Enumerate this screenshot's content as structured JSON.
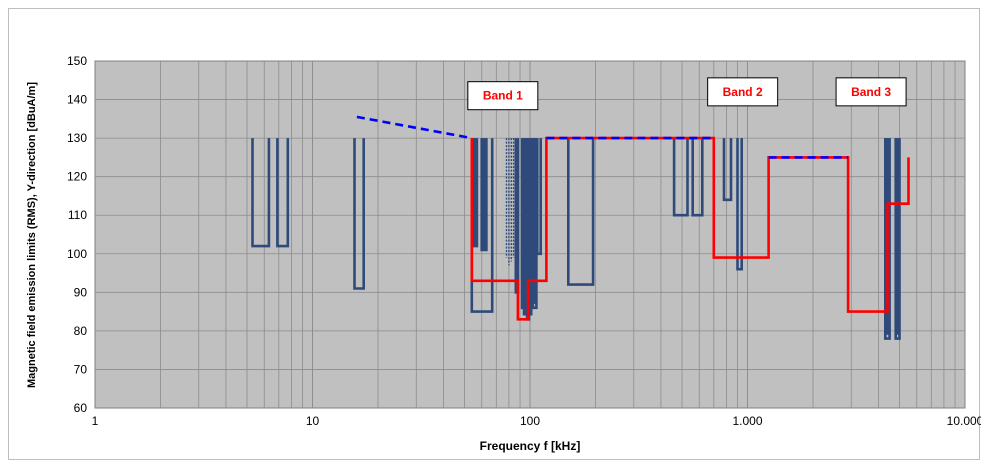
{
  "chart_data": {
    "type": "line",
    "title": "",
    "xlabel": "Frequency f [kHz]",
    "ylabel": "Magnetic field emission limits (RMS), Y-direction [dBuA/m]",
    "xscale": "log",
    "xlim": [
      1,
      10000
    ],
    "ylim": [
      60,
      150
    ],
    "x_ticks": [
      {
        "value": 1,
        "label": "1"
      },
      {
        "value": 10,
        "label": "10"
      },
      {
        "value": 100,
        "label": "100"
      },
      {
        "value": 1000,
        "label": "1.000"
      },
      {
        "value": 10000,
        "label": "10.000"
      }
    ],
    "y_ticks": [
      60,
      70,
      80,
      90,
      100,
      110,
      120,
      130,
      140,
      150
    ],
    "grid": true,
    "plot_background": "#c0c0c0",
    "colors": {
      "navy": "#2e4a7a",
      "red": "#ff0000",
      "blue_dash": "#0000ff",
      "grid": "#8c8c8c"
    },
    "annotations": [
      {
        "text": "Band 1",
        "x": 75,
        "y": 141
      },
      {
        "text": "Band 2",
        "x": 950,
        "y": 142
      },
      {
        "text": "Band 3",
        "x": 3700,
        "y": 142
      }
    ],
    "series": [
      {
        "style": "navy",
        "segments": [
          [
            [
              5.3,
              130
            ],
            [
              5.3,
              102
            ],
            [
              6.3,
              102
            ],
            [
              6.3,
              130
            ]
          ],
          [
            [
              6.9,
              130
            ],
            [
              6.9,
              102
            ],
            [
              7.7,
              102
            ],
            [
              7.7,
              130
            ]
          ],
          [
            [
              15.6,
              130
            ],
            [
              15.6,
              91
            ],
            [
              17.2,
              91
            ],
            [
              17.2,
              130
            ]
          ],
          [
            [
              54,
              130
            ],
            [
              54,
              85
            ],
            [
              67,
              85
            ],
            [
              67,
              130
            ]
          ],
          [
            [
              55,
              130
            ],
            [
              55,
              102
            ],
            [
              57,
              102
            ],
            [
              57,
              130
            ]
          ],
          [
            [
              60,
              130
            ],
            [
              60,
              101
            ],
            [
              63,
              101
            ],
            [
              63,
              130
            ]
          ],
          [
            [
              86,
              130
            ],
            [
              86,
              90
            ],
            [
              88,
              90
            ],
            [
              88,
              130
            ]
          ],
          [
            [
              92,
              130
            ],
            [
              92,
              86
            ],
            [
              94,
              86
            ],
            [
              94,
              130
            ]
          ],
          [
            [
              97,
              130
            ],
            [
              97,
              83
            ],
            [
              99,
              83
            ],
            [
              99,
              130
            ]
          ],
          [
            [
              103,
              130
            ],
            [
              103,
              86
            ],
            [
              107,
              86
            ],
            [
              107,
              130
            ]
          ],
          [
            [
              108,
              130
            ],
            [
              108,
              100
            ],
            [
              112,
              100
            ],
            [
              112,
              130
            ]
          ],
          [
            [
              150,
              130
            ],
            [
              150,
              92
            ],
            [
              195,
              92
            ],
            [
              195,
              130
            ]
          ],
          [
            [
              460,
              130
            ],
            [
              460,
              110
            ],
            [
              530,
              110
            ],
            [
              530,
              130
            ]
          ],
          [
            [
              560,
              130
            ],
            [
              560,
              110
            ],
            [
              620,
              110
            ],
            [
              620,
              130
            ]
          ],
          [
            [
              780,
              130
            ],
            [
              780,
              114
            ],
            [
              840,
              114
            ],
            [
              840,
              130
            ]
          ],
          [
            [
              900,
              130
            ],
            [
              900,
              96
            ],
            [
              940,
              96
            ],
            [
              940,
              130
            ]
          ],
          [
            [
              4300,
              130
            ],
            [
              4300,
              78
            ],
            [
              4500,
              78
            ],
            [
              4500,
              130
            ]
          ],
          [
            [
              4800,
              130
            ],
            [
              4800,
              78
            ],
            [
              5000,
              78
            ],
            [
              5000,
              130
            ]
          ]
        ]
      },
      {
        "style": "navy-hatch",
        "segments": [
          [
            [
              78,
              130
            ],
            [
              78,
              99
            ]
          ],
          [
            [
              80,
              130
            ],
            [
              80,
              97
            ]
          ],
          [
            [
              82,
              130
            ],
            [
              82,
              98
            ]
          ],
          [
            [
              84,
              130
            ],
            [
              84,
              99
            ]
          ]
        ]
      },
      {
        "style": "navy-fill",
        "segments": [
          [
            [
              55,
              130
            ],
            [
              55,
              102
            ]
          ],
          [
            [
              61,
              130
            ],
            [
              61,
              101
            ]
          ],
          [
            [
              95,
              130
            ],
            [
              95,
              84
            ]
          ],
          [
            [
              100,
              130
            ],
            [
              100,
              84
            ]
          ],
          [
            [
              104,
              130
            ],
            [
              104,
              87
            ]
          ],
          [
            [
              4400,
              130
            ],
            [
              4400,
              79
            ]
          ],
          [
            [
              4900,
              130
            ],
            [
              4900,
              79
            ]
          ]
        ]
      },
      {
        "style": "red",
        "segments": [
          [
            [
              54,
              130
            ],
            [
              54,
              93
            ],
            [
              88,
              93
            ],
            [
              88,
              83
            ],
            [
              98,
              83
            ],
            [
              98,
              93
            ],
            [
              119,
              93
            ],
            [
              119,
              130
            ],
            [
              700,
              130
            ],
            [
              700,
              99
            ],
            [
              1250,
              99
            ],
            [
              1250,
              125
            ],
            [
              2900,
              125
            ],
            [
              2900,
              85
            ],
            [
              4400,
              85
            ],
            [
              4400,
              113
            ],
            [
              5500,
              113
            ],
            [
              5500,
              125
            ]
          ]
        ]
      },
      {
        "style": "dash",
        "segments": [
          [
            [
              16,
              135.5
            ],
            [
              54,
              130
            ]
          ],
          [
            [
              119,
              130
            ],
            [
              700,
              130
            ]
          ],
          [
            [
              1250,
              125
            ],
            [
              2900,
              125
            ]
          ]
        ]
      }
    ]
  }
}
